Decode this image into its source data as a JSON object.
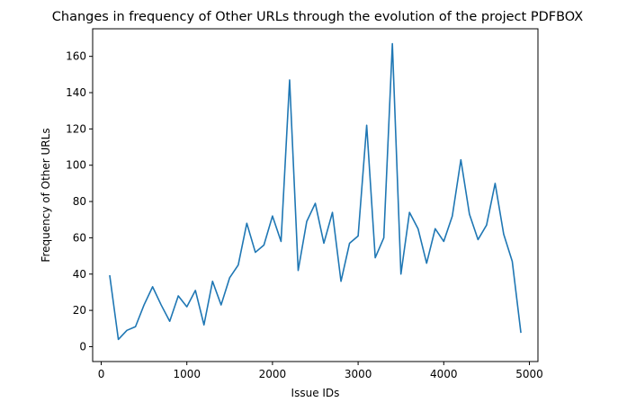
{
  "chart_data": {
    "type": "line",
    "title": "Changes in frequency of Other URLs through the evolution of the project PDFBOX",
    "xlabel": "Issue IDs",
    "ylabel": "Frequency of Other URLs",
    "xlim": [
      -100,
      5100
    ],
    "ylim": [
      -8.2,
      175.2
    ],
    "xticks": [
      0,
      1000,
      2000,
      3000,
      4000,
      5000
    ],
    "yticks": [
      0,
      20,
      40,
      60,
      80,
      100,
      120,
      140,
      160
    ],
    "grid": false,
    "series": [
      {
        "color": "#1f77b4",
        "x": [
          100,
          200,
          300,
          400,
          500,
          600,
          700,
          800,
          900,
          1000,
          1100,
          1200,
          1300,
          1400,
          1500,
          1600,
          1700,
          1800,
          1900,
          2000,
          2100,
          2200,
          2300,
          2400,
          2500,
          2600,
          2700,
          2800,
          2900,
          3000,
          3100,
          3200,
          3300,
          3400,
          3500,
          3600,
          3700,
          3800,
          3900,
          4000,
          4100,
          4200,
          4300,
          4400,
          4500,
          4600,
          4700,
          4800,
          4900
        ],
        "y": [
          39,
          4,
          9,
          11,
          23,
          33,
          23,
          14,
          28,
          22,
          31,
          12,
          36,
          23,
          38,
          45,
          68,
          52,
          56,
          72,
          58,
          147,
          42,
          69,
          79,
          57,
          74,
          36,
          57,
          61,
          122,
          49,
          60,
          167,
          40,
          74,
          65,
          46,
          65,
          58,
          72,
          103,
          73,
          59,
          67,
          90,
          62,
          47,
          8
        ]
      }
    ]
  }
}
